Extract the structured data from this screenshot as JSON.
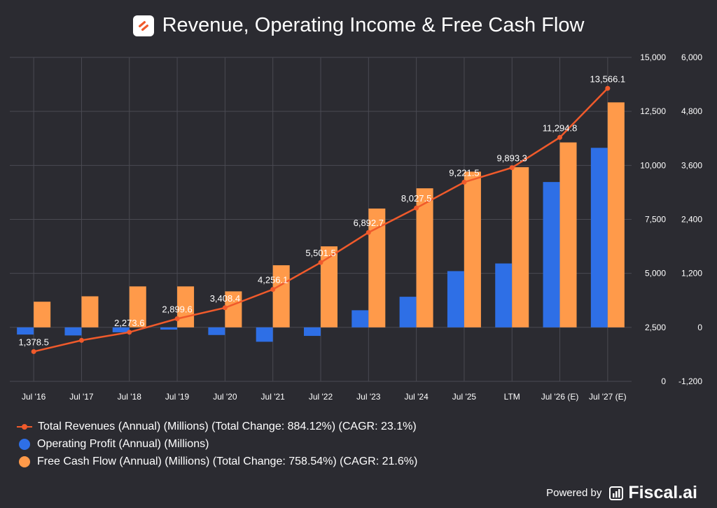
{
  "title": "Revenue, Operating Income & Free Cash Flow",
  "icons": {
    "logo": "brand-logo-icon",
    "brand_mark": "fiscal-ai-icon"
  },
  "colors": {
    "background": "#2b2b31",
    "revenue": "#f05a2b",
    "operating": "#2e6fe6",
    "fcf": "#ff9a4a",
    "grid": "#4a4a52"
  },
  "footer": {
    "powered_by": "Powered by",
    "brand": "Fiscal.ai"
  },
  "legend": [
    {
      "label": "Total Revenues (Annual) (Millions) (Total Change: 884.12%) (CAGR: 23.1%)"
    },
    {
      "label": "Operating Profit (Annual) (Millions)"
    },
    {
      "label": "Free Cash Flow (Annual) (Millions) (Total Change: 758.54%) (CAGR: 21.6%)"
    }
  ],
  "chart_data": {
    "type": "bar+line",
    "categories": [
      "Jul '16",
      "Jul '17",
      "Jul '18",
      "Jul '19",
      "Jul '20",
      "Jul '21",
      "Jul '22",
      "Jul '23",
      "Jul '24",
      "Jul '25",
      "LTM",
      "Jul '26 (E)",
      "Jul '27 (E)"
    ],
    "left_axis": {
      "range": [
        0,
        15000
      ],
      "ticks": [
        "0",
        "2,500",
        "5,000",
        "7,500",
        "10,000",
        "12,500",
        "15,000"
      ],
      "tick_values": [
        0,
        2500,
        5000,
        7500,
        10000,
        12500,
        15000
      ]
    },
    "right_axis": {
      "range": [
        -1200,
        6000
      ],
      "ticks": [
        "-1,200",
        "0",
        "1,200",
        "2,400",
        "3,600",
        "4,800",
        "6,000"
      ],
      "tick_values": [
        -1200,
        0,
        1200,
        2400,
        3600,
        4800,
        6000
      ]
    },
    "series": [
      {
        "name": "Total Revenues",
        "type": "line",
        "axis": "left",
        "values": [
          1378.5,
          1900,
          2273.6,
          2899.6,
          3408.4,
          4256.1,
          5501.5,
          6892.7,
          8027.5,
          9221.5,
          9893.3,
          11294.8,
          13566.1
        ],
        "labels": [
          "1,378.5",
          null,
          "2,273.6",
          "2,899.6",
          "3,408.4",
          "4,256.1",
          "5,501.5",
          "6,892.7",
          "8,027.5",
          "9,221.5",
          "9,893.3",
          "11,294.8",
          "13,566.1"
        ]
      },
      {
        "name": "Operating Profit",
        "type": "bar",
        "axis": "right",
        "values": [
          -160,
          -180,
          -110,
          -50,
          -170,
          -320,
          -190,
          380,
          680,
          1250,
          1420,
          3230,
          3990
        ]
      },
      {
        "name": "Free Cash Flow",
        "type": "bar",
        "axis": "right",
        "values": [
          570,
          690,
          910,
          910,
          800,
          1380,
          1800,
          2640,
          3090,
          3460,
          3560,
          4110,
          5000
        ]
      }
    ]
  }
}
